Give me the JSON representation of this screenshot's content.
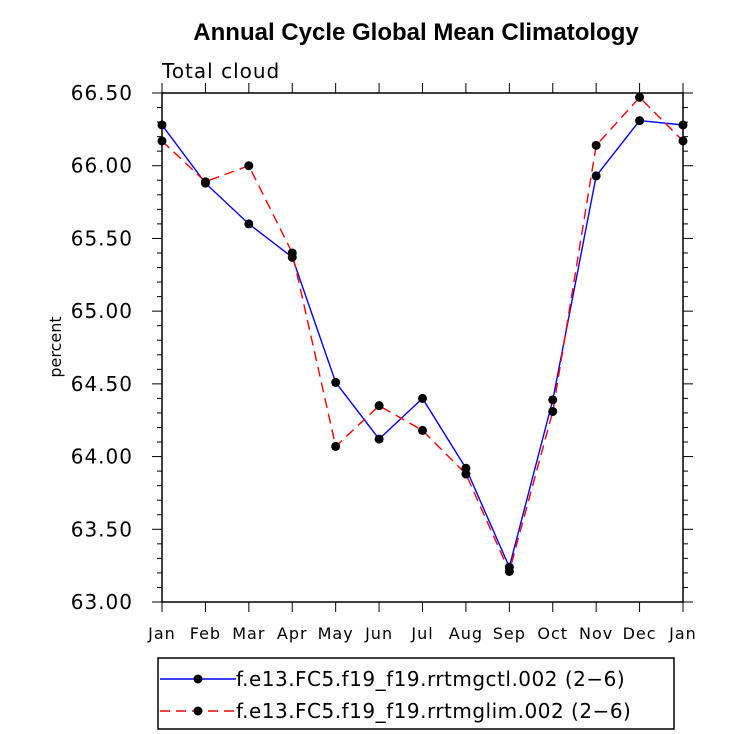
{
  "chart_data": {
    "type": "line",
    "title": "Annual Cycle Global Mean Climatology",
    "subtitle": "Total cloud",
    "xlabel": "",
    "ylabel": "percent",
    "categories": [
      "Jan",
      "Feb",
      "Mar",
      "Apr",
      "May",
      "Jun",
      "Jul",
      "Aug",
      "Sep",
      "Oct",
      "Nov",
      "Dec",
      "Jan"
    ],
    "ylim": [
      63.0,
      66.5
    ],
    "yticks": [
      "63.00",
      "63.50",
      "64.00",
      "64.50",
      "65.00",
      "65.50",
      "66.00",
      "66.50"
    ],
    "legend_position": "bottom",
    "series": [
      {
        "name": "f.e13.FC5.f19_f19.rrtmgctl.002 (2−6)",
        "color": "#0000ff",
        "dash": "solid",
        "values": [
          66.28,
          65.88,
          65.6,
          65.37,
          64.51,
          64.12,
          64.4,
          63.92,
          63.24,
          64.39,
          65.93,
          66.31,
          66.28
        ]
      },
      {
        "name": "f.e13.FC5.f19_f19.rrtmglim.002 (2−6)",
        "color": "#ff0000",
        "dash": "dashed",
        "values": [
          66.17,
          65.89,
          66.0,
          65.4,
          64.07,
          64.35,
          64.18,
          63.88,
          63.21,
          64.31,
          66.14,
          66.47,
          66.17
        ]
      }
    ]
  }
}
